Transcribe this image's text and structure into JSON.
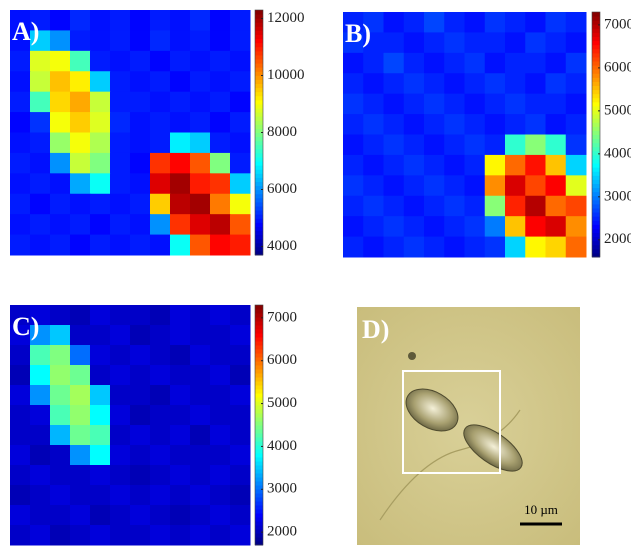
{
  "chart_data": [
    {
      "type": "heatmap",
      "label": "A)",
      "clim": [
        3700,
        12300
      ],
      "cticks": [
        4000,
        6000,
        8000,
        10000,
        12000
      ],
      "z": [
        [
          4900,
          5000,
          4800,
          5100,
          4900,
          5000,
          4800,
          5000,
          4900,
          5100,
          4800,
          5000
        ],
        [
          4900,
          6500,
          6000,
          5000,
          4900,
          5000,
          4800,
          5100,
          4900,
          5000,
          4800,
          5000
        ],
        [
          5000,
          8800,
          9000,
          7500,
          5000,
          4900,
          5000,
          4800,
          5000,
          4900,
          5000,
          4900
        ],
        [
          4900,
          8600,
          9600,
          9200,
          6500,
          5000,
          4900,
          5000,
          4800,
          5000,
          4900,
          5000
        ],
        [
          5000,
          7500,
          9400,
          9800,
          8600,
          5000,
          5000,
          4900,
          5000,
          4900,
          5000,
          4800
        ],
        [
          4800,
          5200,
          9000,
          9500,
          8800,
          5100,
          4900,
          5000,
          4900,
          5000,
          4800,
          5000
        ],
        [
          4900,
          5000,
          8200,
          9000,
          8400,
          5000,
          4900,
          5000,
          6800,
          6500,
          5000,
          4900
        ],
        [
          5000,
          4900,
          6000,
          8600,
          8000,
          5000,
          4800,
          10800,
          11200,
          10500,
          8000,
          5000
        ],
        [
          4900,
          5000,
          4900,
          6200,
          7000,
          5000,
          4900,
          11500,
          12000,
          11000,
          10800,
          6500
        ],
        [
          5000,
          4800,
          5000,
          4900,
          5000,
          4900,
          5000,
          9500,
          11800,
          12000,
          10200,
          9000
        ],
        [
          4900,
          5000,
          4900,
          5000,
          4800,
          5000,
          4900,
          6000,
          10800,
          11500,
          11800,
          10500
        ],
        [
          5000,
          4900,
          5000,
          4800,
          5000,
          4900,
          5000,
          4900,
          7000,
          10500,
          11200,
          11000
        ]
      ]
    },
    {
      "type": "heatmap",
      "label": "B)",
      "clim": [
        1600,
        7300
      ],
      "cticks": [
        2000,
        3000,
        4000,
        5000,
        6000,
        7000
      ],
      "z": [
        [
          2500,
          2600,
          2400,
          2500,
          2700,
          2500,
          2400,
          2600,
          2500,
          2400,
          2600,
          2500
        ],
        [
          2600,
          2500,
          2500,
          2400,
          2500,
          2600,
          2500,
          2500,
          2400,
          2600,
          2500,
          2400
        ],
        [
          2400,
          2500,
          2700,
          2500,
          2400,
          2500,
          2600,
          2400,
          2500,
          2500,
          2400,
          2600
        ],
        [
          2500,
          2400,
          2500,
          2600,
          2500,
          2400,
          2500,
          2600,
          2500,
          2400,
          2600,
          2500
        ],
        [
          2600,
          2500,
          2400,
          2500,
          2600,
          2500,
          2400,
          2500,
          2600,
          2500,
          2500,
          2400
        ],
        [
          2500,
          2600,
          2500,
          2400,
          2500,
          2600,
          2500,
          2400,
          2500,
          2600,
          2400,
          2500
        ],
        [
          2400,
          2500,
          2600,
          2500,
          2400,
          2500,
          2600,
          2500,
          4000,
          4500,
          4000,
          2600
        ],
        [
          2500,
          2400,
          2500,
          2600,
          2500,
          2400,
          2500,
          5200,
          6000,
          6500,
          5500,
          3500
        ],
        [
          2600,
          2500,
          2400,
          2500,
          2600,
          2500,
          2400,
          5800,
          6800,
          6200,
          6600,
          5000
        ],
        [
          2500,
          2600,
          2500,
          2400,
          2500,
          2600,
          2500,
          4500,
          6400,
          7000,
          6000,
          6200
        ],
        [
          2400,
          2500,
          2600,
          2500,
          2400,
          2500,
          2600,
          3000,
          5500,
          6600,
          6800,
          5800
        ],
        [
          2500,
          2400,
          2500,
          2600,
          2500,
          2400,
          2500,
          2600,
          3500,
          5200,
          5400,
          6000
        ]
      ]
    },
    {
      "type": "heatmap",
      "label": "C)",
      "clim": [
        1700,
        7300
      ],
      "cticks": [
        2000,
        3000,
        4000,
        5000,
        6000,
        7000
      ],
      "z": [
        [
          2100,
          2200,
          2100,
          2000,
          2200,
          2100,
          2100,
          2000,
          2200,
          2100,
          2200,
          2100
        ],
        [
          2200,
          3200,
          3500,
          2100,
          2100,
          2200,
          2000,
          2100,
          2200,
          2100,
          2100,
          2200
        ],
        [
          2100,
          4200,
          4500,
          3000,
          2200,
          2100,
          2200,
          2100,
          2000,
          2200,
          2100,
          2100
        ],
        [
          2000,
          3800,
          4600,
          4400,
          2100,
          2200,
          2100,
          2200,
          2100,
          2100,
          2200,
          2000
        ],
        [
          2200,
          3200,
          4400,
          4700,
          3500,
          2100,
          2100,
          2000,
          2200,
          2100,
          2100,
          2200
        ],
        [
          2100,
          2200,
          4200,
          4600,
          3800,
          2200,
          2000,
          2100,
          2100,
          2200,
          2100,
          2100
        ],
        [
          2100,
          2100,
          3400,
          4400,
          4200,
          2100,
          2200,
          2100,
          2200,
          2000,
          2200,
          2100
        ],
        [
          2200,
          2000,
          2100,
          3200,
          3800,
          2200,
          2100,
          2200,
          2100,
          2100,
          2100,
          2200
        ],
        [
          2100,
          2200,
          2100,
          2100,
          2200,
          2100,
          2000,
          2100,
          2200,
          2100,
          2200,
          2100
        ],
        [
          2000,
          2100,
          2200,
          2100,
          2100,
          2200,
          2100,
          2200,
          2100,
          2200,
          2100,
          2000
        ],
        [
          2200,
          2100,
          2100,
          2200,
          2000,
          2100,
          2200,
          2100,
          2000,
          2100,
          2200,
          2100
        ],
        [
          2100,
          2200,
          2000,
          2100,
          2200,
          2100,
          2100,
          2200,
          2100,
          2200,
          2100,
          2200
        ]
      ]
    }
  ],
  "photo": {
    "label": "D)",
    "scale_bar": "10 µm"
  }
}
